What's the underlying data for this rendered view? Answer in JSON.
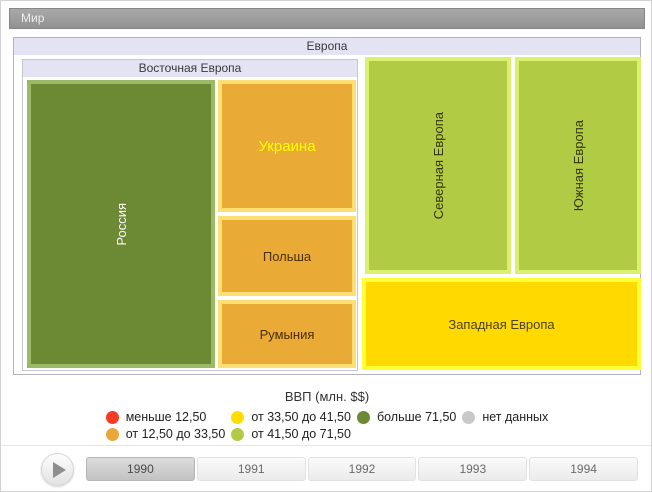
{
  "breadcrumb": {
    "title": "Мир"
  },
  "treemap": {
    "europa_header": "Европа",
    "vostochnaya_header": "Восточная Европа",
    "blocks": {
      "russia": {
        "label": "Россия",
        "fill": "#6c8933",
        "border": "#9cb968",
        "text": "#ffffff"
      },
      "ukraine": {
        "label": "Украина",
        "fill": "#eaaa36",
        "border": "#ffdf73",
        "text": "#ffff00"
      },
      "poland": {
        "label": "Польша",
        "fill": "#eaaa36",
        "border": "#ffdf73",
        "text": "#4b2e04"
      },
      "romania": {
        "label": "Румыния",
        "fill": "#eaaa36",
        "border": "#ffdf73",
        "text": "#4b2e04"
      },
      "northern": {
        "label": "Северная Европа",
        "fill": "#b2cb44",
        "border": "#daf06f",
        "text": "#31380b"
      },
      "southern": {
        "label": "Южная Европа",
        "fill": "#b2cb44",
        "border": "#daf06f",
        "text": "#31380b"
      },
      "western": {
        "label": "Западная Европа",
        "fill": "#ffd900",
        "border": "#ffff38",
        "text": "#4c4418"
      }
    }
  },
  "legend": {
    "title": "ВВП (млн. $$)",
    "items": [
      {
        "label": "меньше 12,50",
        "color": "#f43b24"
      },
      {
        "label": "от 12,50 до 33,50",
        "color": "#e9a63b"
      },
      {
        "label": "от 33,50 до 41,50",
        "color": "#ffdd00"
      },
      {
        "label": "от 41,50 до 71,50",
        "color": "#b2cb44"
      },
      {
        "label": "больше 71,50",
        "color": "#6c8933"
      },
      {
        "label": "нет данных",
        "color": "#c9c9c9"
      }
    ]
  },
  "timeline": {
    "years": [
      "1990",
      "1991",
      "1992",
      "1993",
      "1994"
    ],
    "selected": "1990"
  },
  "chart_data": {
    "type": "treemap",
    "title": "Мир",
    "legend_title": "ВВП (млн. $$)",
    "legend_position": "bottom",
    "timeline_years": [
      "1990",
      "1991",
      "1992",
      "1993",
      "1994"
    ],
    "selected_year": "1990",
    "bins": [
      {
        "label": "меньше 12,50",
        "color": "#f43b24"
      },
      {
        "label": "от 12,50 до 33,50",
        "color": "#e9a63b"
      },
      {
        "label": "от 33,50 до 41,50",
        "color": "#ffdd00"
      },
      {
        "label": "от 41,50 до 71,50",
        "color": "#b2cb44"
      },
      {
        "label": "больше 71,50",
        "color": "#6c8933"
      },
      {
        "label": "нет данных",
        "color": "#c9c9c9"
      }
    ],
    "nodes": [
      {
        "name": "Европа",
        "parent": "Мир",
        "bin": null
      },
      {
        "name": "Восточная Европа",
        "parent": "Европа",
        "bin": null
      },
      {
        "name": "Россия",
        "parent": "Восточная Европа",
        "bin": "больше 71,50"
      },
      {
        "name": "Украина",
        "parent": "Восточная Европа",
        "bin": "от 12,50 до 33,50"
      },
      {
        "name": "Польша",
        "parent": "Восточная Европа",
        "bin": "от 12,50 до 33,50"
      },
      {
        "name": "Румыния",
        "parent": "Восточная Европа",
        "bin": "от 12,50 до 33,50"
      },
      {
        "name": "Северная Европа",
        "parent": "Европа",
        "bin": "от 41,50 до 71,50"
      },
      {
        "name": "Южная Европа",
        "parent": "Европа",
        "bin": "от 41,50 до 71,50"
      },
      {
        "name": "Западная Европа",
        "parent": "Европа",
        "bin": "от 33,50 до 41,50"
      }
    ]
  }
}
